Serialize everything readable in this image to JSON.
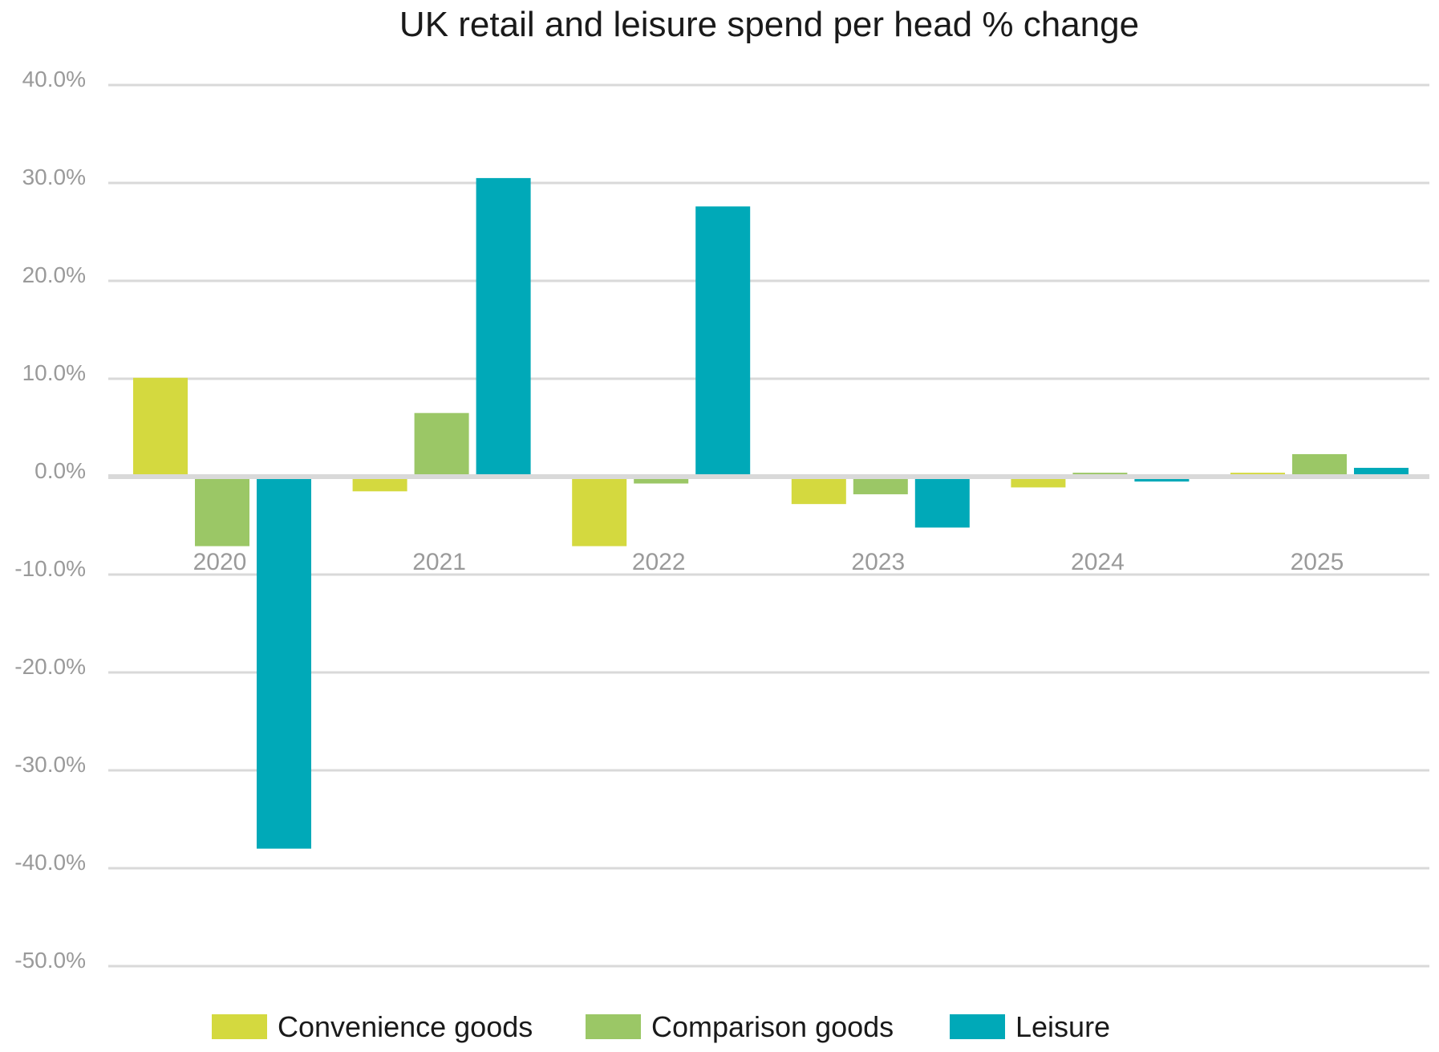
{
  "chart_data": {
    "type": "bar",
    "title": "UK retail and leisure spend per head % change",
    "xlabel": "",
    "ylabel": "",
    "categories": [
      "2020",
      "2021",
      "2022",
      "2023",
      "2024",
      "2025"
    ],
    "y_ticks": [
      "40.0%",
      "30.0%",
      "20.0%",
      "10.0%",
      "0.0%",
      "-10.0%",
      "-20.0%",
      "-30.0%",
      "-40.0%",
      "-50.0%"
    ],
    "ylim": [
      -50,
      40
    ],
    "grid": true,
    "legend_position": "bottom",
    "series": [
      {
        "name": "Convenience goods",
        "color": "#d4d93f",
        "values": [
          10.1,
          -1.5,
          -7.1,
          -2.8,
          -1.1,
          0.4
        ]
      },
      {
        "name": "Comparison goods",
        "color": "#9bc766",
        "values": [
          -7.1,
          6.5,
          -0.7,
          -1.8,
          0.4,
          2.3
        ]
      },
      {
        "name": "Leisure",
        "color": "#00a9b8",
        "values": [
          -38.0,
          30.5,
          27.6,
          -5.2,
          -0.5,
          0.9
        ]
      }
    ]
  }
}
